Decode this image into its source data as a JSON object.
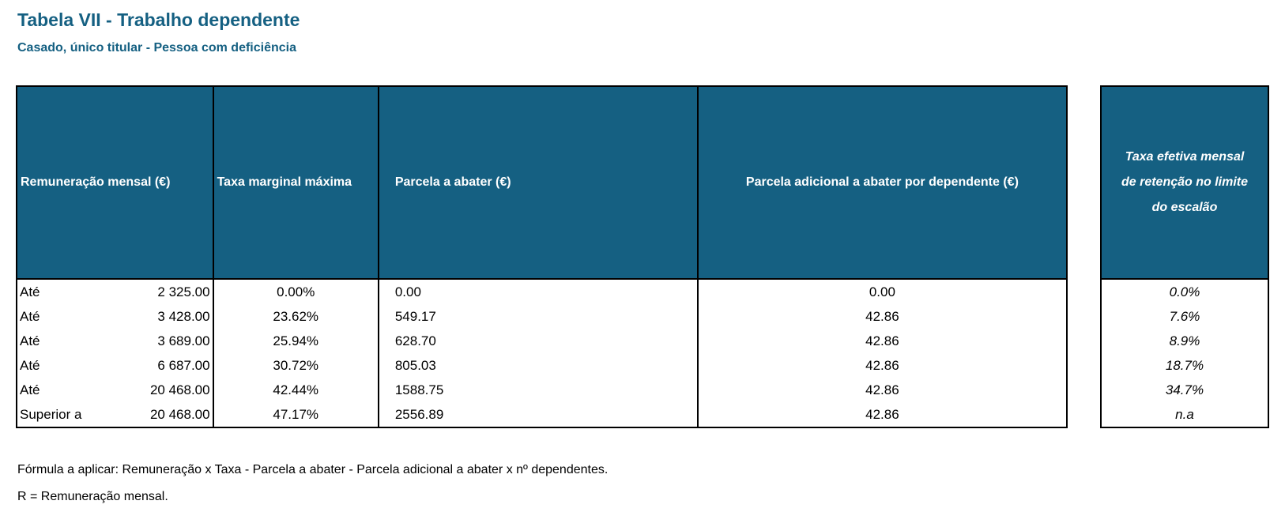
{
  "title": "Tabela VII - Trabalho dependente",
  "subtitle": "Casado, único titular - Pessoa com deficiência",
  "table": {
    "headers": [
      "Remuneração mensal (€)",
      "Taxa marginal máxima",
      "Parcela a abater (€)",
      "Parcela adicional a abater por dependente (€)"
    ],
    "rows": [
      {
        "prefix": "Até",
        "amount": "2 325.00",
        "rate": "0.00%",
        "deduction": "0.00",
        "per_dependent": "0.00"
      },
      {
        "prefix": "Até",
        "amount": "3 428.00",
        "rate": "23.62%",
        "deduction": "549.17",
        "per_dependent": "42.86"
      },
      {
        "prefix": "Até",
        "amount": "3 689.00",
        "rate": "25.94%",
        "deduction": "628.70",
        "per_dependent": "42.86"
      },
      {
        "prefix": "Até",
        "amount": "6 687.00",
        "rate": "30.72%",
        "deduction": "805.03",
        "per_dependent": "42.86"
      },
      {
        "prefix": "Até",
        "amount": "20 468.00",
        "rate": "42.44%",
        "deduction": "1588.75",
        "per_dependent": "42.86"
      },
      {
        "prefix": "Superior a",
        "amount": "20 468.00",
        "rate": "47.17%",
        "deduction": "2556.89",
        "per_dependent": "42.86"
      }
    ]
  },
  "side_table": {
    "header_lines": [
      "Taxa efetiva mensal",
      "de retenção no limite",
      "do escalão"
    ],
    "values": [
      "0.0%",
      "7.6%",
      "8.9%",
      "18.7%",
      "34.7%",
      "n.a"
    ]
  },
  "notes": [
    "Fórmula a aplicar: Remuneração x Taxa - Parcela a abater - Parcela adicional a abater x nº dependentes.",
    "R = Remuneração mensal."
  ]
}
